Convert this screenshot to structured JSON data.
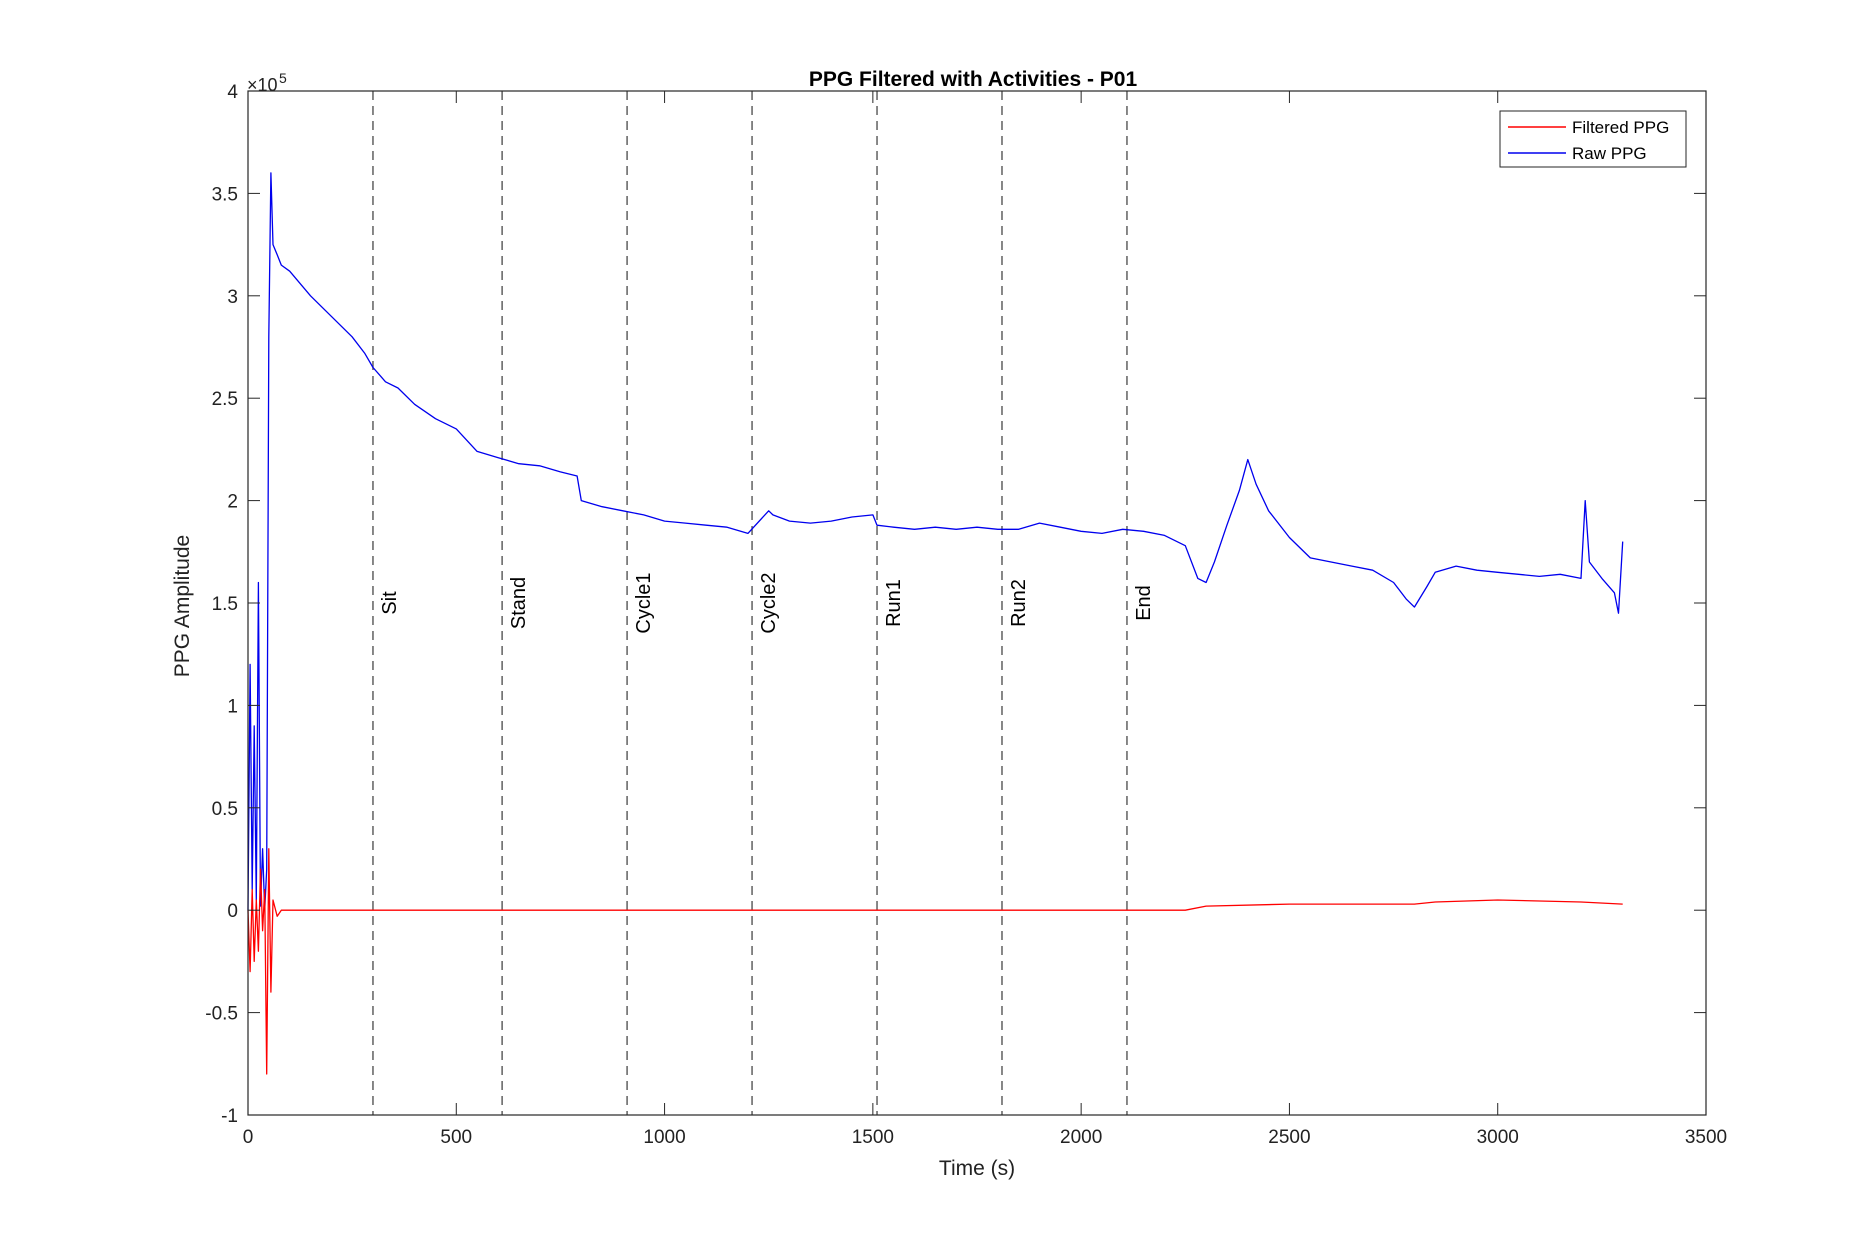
{
  "chart_data": {
    "type": "line",
    "title": "PPG Filtered with Activities - P01",
    "xlabel": "Time (s)",
    "ylabel": "PPG Amplitude",
    "y_exponent_label": "×10",
    "y_exponent_power": "5",
    "xlim": [
      0,
      3500
    ],
    "ylim": [
      -1,
      4
    ],
    "y_scale_factor": 100000,
    "grid": false,
    "legend_position": "top-right",
    "x_ticks": [
      {
        "value": 0,
        "label": "0"
      },
      {
        "value": 500,
        "label": "500"
      },
      {
        "value": 1000,
        "label": "1000"
      },
      {
        "value": 1500,
        "label": "1500"
      },
      {
        "value": 2000,
        "label": "2000"
      },
      {
        "value": 2500,
        "label": "2500"
      },
      {
        "value": 3000,
        "label": "3000"
      },
      {
        "value": 3500,
        "label": "3500"
      }
    ],
    "y_ticks": [
      {
        "value": -1,
        "label": "-1"
      },
      {
        "value": -0.5,
        "label": "-0.5"
      },
      {
        "value": 0,
        "label": "0"
      },
      {
        "value": 0.5,
        "label": "0.5"
      },
      {
        "value": 1,
        "label": "1"
      },
      {
        "value": 1.5,
        "label": "1.5"
      },
      {
        "value": 2,
        "label": "2"
      },
      {
        "value": 2.5,
        "label": "2.5"
      },
      {
        "value": 3,
        "label": "3"
      },
      {
        "value": 3.5,
        "label": "3.5"
      },
      {
        "value": 4,
        "label": "4"
      }
    ],
    "activities": [
      {
        "label": "Sit",
        "x": 300
      },
      {
        "label": "Stand",
        "x": 610
      },
      {
        "label": "Cycle1",
        "x": 910
      },
      {
        "label": "Cycle2",
        "x": 1210
      },
      {
        "label": "Run1",
        "x": 1510
      },
      {
        "label": "Run2",
        "x": 1810
      },
      {
        "label": "End",
        "x": 2110
      }
    ],
    "activity_label_y": 1.5,
    "series": [
      {
        "name": "Raw PPG",
        "color": "#0000ee",
        "x": [
          0,
          5,
          10,
          15,
          20,
          25,
          30,
          35,
          40,
          45,
          50,
          55,
          60,
          70,
          80,
          100,
          150,
          200,
          250,
          280,
          300,
          330,
          360,
          400,
          450,
          500,
          550,
          600,
          650,
          700,
          750,
          790,
          800,
          850,
          900,
          950,
          1000,
          1050,
          1100,
          1150,
          1200,
          1250,
          1260,
          1300,
          1350,
          1400,
          1450,
          1500,
          1510,
          1550,
          1600,
          1650,
          1700,
          1750,
          1800,
          1850,
          1900,
          1950,
          2000,
          2050,
          2100,
          2150,
          2200,
          2250,
          2280,
          2300,
          2320,
          2350,
          2380,
          2400,
          2420,
          2450,
          2500,
          2550,
          2600,
          2650,
          2700,
          2750,
          2780,
          2800,
          2830,
          2850,
          2900,
          2950,
          3000,
          3050,
          3100,
          3150,
          3200,
          3210,
          3220,
          3250,
          3280,
          3290,
          3300
        ],
        "y": [
          0.0,
          1.2,
          0.1,
          0.9,
          0.05,
          1.6,
          0.02,
          0.3,
          0.0,
          0.2,
          2.8,
          3.6,
          3.25,
          3.2,
          3.15,
          3.12,
          3.0,
          2.9,
          2.8,
          2.72,
          2.65,
          2.58,
          2.55,
          2.47,
          2.4,
          2.35,
          2.24,
          2.21,
          2.18,
          2.17,
          2.14,
          2.12,
          2.0,
          1.97,
          1.95,
          1.93,
          1.9,
          1.89,
          1.88,
          1.87,
          1.84,
          1.95,
          1.93,
          1.9,
          1.89,
          1.9,
          1.92,
          1.93,
          1.88,
          1.87,
          1.86,
          1.87,
          1.86,
          1.87,
          1.86,
          1.86,
          1.89,
          1.87,
          1.85,
          1.84,
          1.86,
          1.85,
          1.83,
          1.78,
          1.62,
          1.6,
          1.7,
          1.88,
          2.05,
          2.2,
          2.08,
          1.95,
          1.82,
          1.72,
          1.7,
          1.68,
          1.66,
          1.6,
          1.52,
          1.48,
          1.58,
          1.65,
          1.68,
          1.66,
          1.65,
          1.64,
          1.63,
          1.64,
          1.62,
          2.0,
          1.7,
          1.62,
          1.55,
          1.45,
          1.8
        ]
      },
      {
        "name": "Filtered PPG",
        "color": "#ff0000",
        "x": [
          0,
          5,
          10,
          15,
          20,
          25,
          30,
          35,
          40,
          45,
          50,
          55,
          60,
          70,
          80,
          100,
          500,
          1000,
          1500,
          2000,
          2250,
          2300,
          2500,
          2800,
          2850,
          3000,
          3200,
          3300
        ],
        "y": [
          0.0,
          -0.3,
          0.1,
          -0.25,
          0.05,
          -0.2,
          0.2,
          -0.1,
          0.1,
          -0.8,
          0.3,
          -0.4,
          0.05,
          -0.03,
          0.0,
          0.0,
          0.0,
          0.0,
          0.0,
          0.0,
          0.0,
          0.02,
          0.03,
          0.03,
          0.04,
          0.05,
          0.04,
          0.03
        ]
      }
    ]
  }
}
